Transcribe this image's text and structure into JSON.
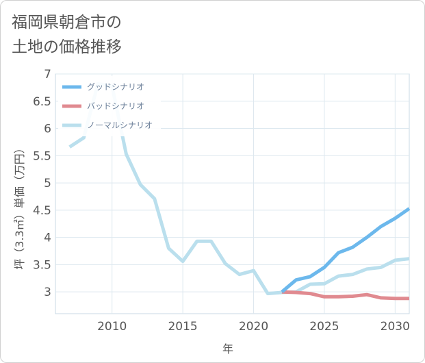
{
  "title_lines": [
    "福岡県朝倉市の",
    "土地の価格推移"
  ],
  "chart_data": {
    "type": "line",
    "title": "福岡県朝倉市の土地の価格推移",
    "xlabel": "年",
    "ylabel": "坪（3.3㎡）単価（万円）",
    "xlim": [
      2006,
      2031
    ],
    "ylim": [
      2.6,
      7
    ],
    "xticks": [
      2010,
      2015,
      2020,
      2025,
      2030
    ],
    "yticks": [
      3,
      3.5,
      4,
      4.5,
      5,
      5.5,
      6,
      6.5,
      7
    ],
    "grid": true,
    "legend_position": "top-left",
    "series": [
      {
        "name": "グッドシナリオ",
        "color": "#6cb8ec",
        "x": [
          2022,
          2023,
          2024,
          2025,
          2026,
          2027,
          2028,
          2029,
          2030,
          2031
        ],
        "y": [
          3.0,
          3.22,
          3.28,
          3.45,
          3.72,
          3.82,
          4.0,
          4.2,
          4.35,
          4.53
        ]
      },
      {
        "name": "バッドシナリオ",
        "color": "#e08a90",
        "x": [
          2022,
          2023,
          2024,
          2025,
          2026,
          2027,
          2028,
          2029,
          2030,
          2031
        ],
        "y": [
          3.0,
          2.99,
          2.97,
          2.91,
          2.91,
          2.92,
          2.95,
          2.89,
          2.88,
          2.88
        ]
      },
      {
        "name": "ノーマルシナリオ",
        "color": "#badfed",
        "x": [
          2007,
          2008,
          2009,
          2010,
          2011,
          2012,
          2013,
          2014,
          2015,
          2016,
          2017,
          2018,
          2019,
          2020,
          2021,
          2022,
          2023,
          2024,
          2025,
          2026,
          2027,
          2028,
          2029,
          2030,
          2031
        ],
        "y": [
          5.66,
          5.83,
          6.82,
          6.78,
          5.53,
          4.97,
          4.71,
          3.8,
          3.56,
          3.93,
          3.93,
          3.52,
          3.32,
          3.39,
          2.97,
          2.99,
          3.0,
          3.14,
          3.15,
          3.29,
          3.32,
          3.42,
          3.45,
          3.58,
          3.61
        ]
      }
    ]
  }
}
